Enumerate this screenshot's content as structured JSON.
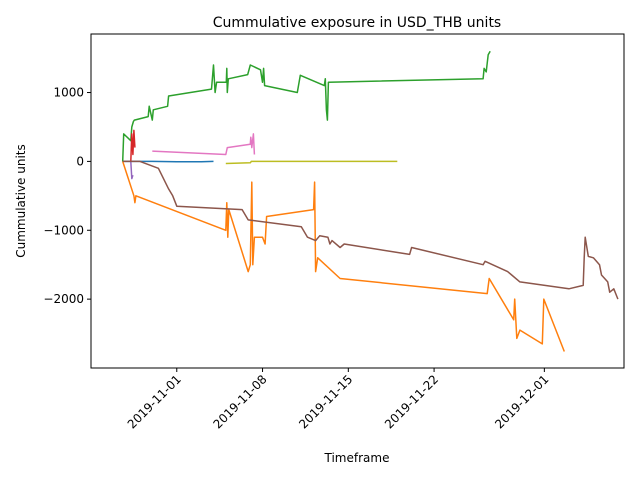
{
  "chart_data": {
    "type": "line",
    "title": "Cummulative exposure in USD_THB units",
    "xlabel": "Timeframe",
    "ylabel": "Cummulative units",
    "x_type": "date",
    "xlim": [
      "2019-10-25",
      "2019-12-07T12:00"
    ],
    "ylim": [
      -3000,
      1850
    ],
    "x_ticks": [
      {
        "value": "2019-11-01",
        "label": "2019-11-01"
      },
      {
        "value": "2019-11-08",
        "label": "2019-11-08"
      },
      {
        "value": "2019-11-15",
        "label": "2019-11-15"
      },
      {
        "value": "2019-11-22",
        "label": "2019-11-22"
      },
      {
        "value": "2019-12-01",
        "label": "2019-12-01"
      }
    ],
    "y_ticks": [
      {
        "value": -2000,
        "label": "−2000"
      },
      {
        "value": -1000,
        "label": "−1000"
      },
      {
        "value": 0,
        "label": "0"
      },
      {
        "value": 1000,
        "label": "1000"
      }
    ],
    "grid": false,
    "legend": "none",
    "series": [
      {
        "color": "#1f77b4",
        "points": [
          [
            "2019-10-27T14:00",
            0
          ],
          [
            "2019-10-28T12:00",
            0
          ],
          [
            "2019-10-30",
            0
          ],
          [
            "2019-11-01",
            -5
          ],
          [
            "2019-11-03",
            -5
          ],
          [
            "2019-11-04",
            0
          ]
        ]
      },
      {
        "color": "#ff7f0e",
        "points": [
          [
            "2019-10-27T14:00",
            0
          ],
          [
            "2019-10-28T12:00",
            -500
          ],
          [
            "2019-10-28T14:00",
            -600
          ],
          [
            "2019-10-28T16:00",
            -500
          ],
          [
            "2019-11-05",
            -1000
          ],
          [
            "2019-11-05T02:00",
            -600
          ],
          [
            "2019-11-05T04:00",
            -1100
          ],
          [
            "2019-11-05T06:00",
            -700
          ],
          [
            "2019-11-06T20:00",
            -1600
          ],
          [
            "2019-11-07",
            -1500
          ],
          [
            "2019-11-07T03:00",
            -300
          ],
          [
            "2019-11-07T05:00",
            -1500
          ],
          [
            "2019-11-07T08:00",
            -1100
          ],
          [
            "2019-11-08",
            -1100
          ],
          [
            "2019-11-08T05:00",
            -1200
          ],
          [
            "2019-11-08T08:00",
            -800
          ],
          [
            "2019-11-12T04:00",
            -700
          ],
          [
            "2019-11-12T06:00",
            -300
          ],
          [
            "2019-11-12T08:00",
            -1600
          ],
          [
            "2019-11-12T12:00",
            -1400
          ],
          [
            "2019-11-14T08:00",
            -1700
          ],
          [
            "2019-11-26T08:00",
            -1920
          ],
          [
            "2019-11-26T12:00",
            -1700
          ],
          [
            "2019-11-28T12:00",
            -2300
          ],
          [
            "2019-11-28T14:00",
            -2000
          ],
          [
            "2019-11-28T18:00",
            -2570
          ],
          [
            "2019-11-29",
            -2450
          ],
          [
            "2019-11-30T20:00",
            -2650
          ],
          [
            "2019-11-30T23:00",
            -2000
          ],
          [
            "2019-12-02T15:00",
            -2760
          ]
        ]
      },
      {
        "color": "#2ca02c",
        "points": [
          [
            "2019-10-27T14:00",
            0
          ],
          [
            "2019-10-27T16:00",
            400
          ],
          [
            "2019-10-28T06:00",
            300
          ],
          [
            "2019-10-28T08:00",
            500
          ],
          [
            "2019-10-28T11:00",
            580
          ],
          [
            "2019-10-28T13:00",
            600
          ],
          [
            "2019-10-29T16:00",
            650
          ],
          [
            "2019-10-29T18:00",
            800
          ],
          [
            "2019-10-30",
            600
          ],
          [
            "2019-10-30T02:00",
            750
          ],
          [
            "2019-10-31T06:00",
            800
          ],
          [
            "2019-10-31T08:00",
            950
          ],
          [
            "2019-11-03T20:00",
            1050
          ],
          [
            "2019-11-04",
            1400
          ],
          [
            "2019-11-04T03:00",
            1000
          ],
          [
            "2019-11-04T06:00",
            1150
          ],
          [
            "2019-11-05T01:00",
            1150
          ],
          [
            "2019-11-05T02:00",
            1350
          ],
          [
            "2019-11-05T03:00",
            1000
          ],
          [
            "2019-11-05T05:00",
            1200
          ],
          [
            "2019-11-06T19:00",
            1260
          ],
          [
            "2019-11-07",
            1400
          ],
          [
            "2019-11-07T20:00",
            1330
          ],
          [
            "2019-11-08",
            1150
          ],
          [
            "2019-11-08T02:00",
            1350
          ],
          [
            "2019-11-08T04:00",
            1100
          ],
          [
            "2019-11-10T20:00",
            1000
          ],
          [
            "2019-11-11T02:00",
            1250
          ],
          [
            "2019-11-13T01:00",
            1100
          ],
          [
            "2019-11-13T03:00",
            1200
          ],
          [
            "2019-11-13T05:00",
            750
          ],
          [
            "2019-11-13T07:00",
            600
          ],
          [
            "2019-11-13T09:00",
            1150
          ],
          [
            "2019-11-26",
            1200
          ],
          [
            "2019-11-26T02:00",
            1350
          ],
          [
            "2019-11-26T06:00",
            1300
          ],
          [
            "2019-11-26T10:00",
            1550
          ],
          [
            "2019-11-26T14:00",
            1600
          ]
        ]
      },
      {
        "color": "#d62728",
        "points": [
          [
            "2019-10-28T06:00",
            0
          ],
          [
            "2019-10-28T08:00",
            400
          ],
          [
            "2019-10-28T10:00",
            100
          ],
          [
            "2019-10-28T12:00",
            450
          ],
          [
            "2019-10-28T14:00",
            200
          ]
        ]
      },
      {
        "color": "#9467bd",
        "points": [
          [
            "2019-10-28T06:00",
            0
          ],
          [
            "2019-10-28T08:00",
            -250
          ],
          [
            "2019-10-28T10:00",
            -200
          ]
        ]
      },
      {
        "color": "#8c564b",
        "points": [
          [
            "2019-10-27T14:00",
            0
          ],
          [
            "2019-10-29",
            0
          ],
          [
            "2019-10-30T12:00",
            -100
          ],
          [
            "2019-10-31T08:00",
            -400
          ],
          [
            "2019-10-31T16:00",
            -500
          ],
          [
            "2019-11-01",
            -650
          ],
          [
            "2019-11-06T08:00",
            -700
          ],
          [
            "2019-11-06T20:00",
            -850
          ],
          [
            "2019-11-11T04:00",
            -950
          ],
          [
            "2019-11-11T16:00",
            -1100
          ],
          [
            "2019-11-12T08:00",
            -1150
          ],
          [
            "2019-11-12T16:00",
            -1080
          ],
          [
            "2019-11-13T08:00",
            -1100
          ],
          [
            "2019-11-13T12:00",
            -1200
          ],
          [
            "2019-11-13T16:00",
            -1150
          ],
          [
            "2019-11-14T08:00",
            -1250
          ],
          [
            "2019-11-14T16:00",
            -1200
          ],
          [
            "2019-11-20",
            -1350
          ],
          [
            "2019-11-20T04:00",
            -1250
          ],
          [
            "2019-11-26",
            -1500
          ],
          [
            "2019-11-26T04:00",
            -1450
          ],
          [
            "2019-11-28",
            -1600
          ],
          [
            "2019-11-28T08:00",
            -1650
          ],
          [
            "2019-11-29",
            -1750
          ],
          [
            "2019-12-03",
            -1850
          ],
          [
            "2019-12-04T04:00",
            -1800
          ],
          [
            "2019-12-04T06:00",
            -1400
          ],
          [
            "2019-12-04T08:00",
            -1100
          ],
          [
            "2019-12-04T14:00",
            -1380
          ],
          [
            "2019-12-05",
            -1400
          ],
          [
            "2019-12-05T12:00",
            -1500
          ],
          [
            "2019-12-05T16:00",
            -1650
          ],
          [
            "2019-12-06T04:00",
            -1750
          ],
          [
            "2019-12-06T08:00",
            -1900
          ],
          [
            "2019-12-06T16:00",
            -1850
          ],
          [
            "2019-12-07",
            -2000
          ]
        ]
      },
      {
        "color": "#e377c2",
        "points": [
          [
            "2019-10-30",
            150
          ],
          [
            "2019-11-05",
            100
          ],
          [
            "2019-11-05T03:00",
            200
          ],
          [
            "2019-11-07",
            250
          ],
          [
            "2019-11-07T01:00",
            350
          ],
          [
            "2019-11-07T03:00",
            200
          ],
          [
            "2019-11-07T06:00",
            400
          ],
          [
            "2019-11-07T08:00",
            100
          ]
        ]
      },
      {
        "color": "#bcbd22",
        "points": [
          [
            "2019-11-05",
            -30
          ],
          [
            "2019-11-07",
            -20
          ],
          [
            "2019-11-07T02:00",
            0
          ],
          [
            "2019-11-19",
            0
          ]
        ]
      }
    ]
  }
}
